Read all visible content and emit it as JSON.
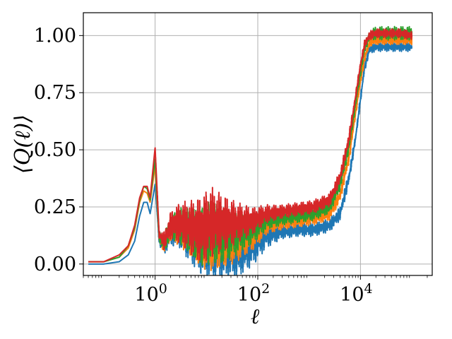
{
  "chart_data": {
    "type": "line",
    "title": "",
    "xlabel": "ℓ",
    "ylabel": "⟨Q(ℓ)⟩",
    "xscale": "log",
    "xlim": [
      0.04,
      250000
    ],
    "ylim": [
      -0.05,
      1.1
    ],
    "grid": true,
    "legend": "none",
    "x_ticks": [
      {
        "value": 1,
        "base": "10",
        "exp": "0"
      },
      {
        "value": 100,
        "base": "10",
        "exp": "2"
      },
      {
        "value": 10000,
        "base": "10",
        "exp": "4"
      }
    ],
    "y_ticks": [
      {
        "value": 0.0,
        "label": "0.00"
      },
      {
        "value": 0.25,
        "label": "0.25"
      },
      {
        "value": 0.5,
        "label": "0.50"
      },
      {
        "value": 0.75,
        "label": "0.75"
      },
      {
        "value": 1.0,
        "label": "1.00"
      }
    ],
    "series": [
      {
        "color": "#1f77b4",
        "x": [
          0.05,
          0.1,
          0.2,
          0.3,
          0.4,
          0.5,
          0.6,
          0.7,
          0.8,
          1.0,
          1.2,
          1.5,
          2,
          3,
          5,
          8,
          12,
          20,
          40,
          80,
          150,
          300,
          600,
          1200,
          2500,
          4000,
          6000,
          8000,
          10000,
          12000,
          15000,
          20000,
          30000,
          60000,
          100000
        ],
        "y": [
          0.0,
          0.0,
          0.01,
          0.04,
          0.1,
          0.21,
          0.27,
          0.27,
          0.22,
          0.35,
          0.1,
          0.08,
          0.13,
          0.14,
          0.1,
          0.07,
          0.06,
          0.05,
          0.04,
          0.08,
          0.13,
          0.14,
          0.15,
          0.15,
          0.17,
          0.22,
          0.38,
          0.55,
          0.72,
          0.86,
          0.94,
          0.95,
          0.95,
          0.95,
          0.95
        ],
        "band": [
          0,
          0,
          0,
          0,
          0,
          0,
          0,
          0,
          0,
          0,
          0.02,
          0.04,
          0.05,
          0.07,
          0.1,
          0.12,
          0.13,
          0.12,
          0.1,
          0.09,
          0.06,
          0.03,
          0.03,
          0.03,
          0.03,
          0.03,
          0.03,
          0.02,
          0.02,
          0.02,
          0.02,
          0.02,
          0.02,
          0.02,
          0.02
        ]
      },
      {
        "color": "#ff7f0e",
        "x": [
          0.05,
          0.1,
          0.2,
          0.3,
          0.4,
          0.5,
          0.6,
          0.7,
          0.8,
          1.0,
          1.2,
          1.5,
          2,
          3,
          5,
          8,
          12,
          20,
          40,
          80,
          150,
          300,
          600,
          1200,
          2500,
          4000,
          6000,
          8000,
          10000,
          12000,
          15000,
          20000,
          30000,
          60000,
          100000
        ],
        "y": [
          0.01,
          0.01,
          0.03,
          0.07,
          0.15,
          0.27,
          0.32,
          0.31,
          0.27,
          0.43,
          0.11,
          0.09,
          0.15,
          0.16,
          0.13,
          0.1,
          0.1,
          0.09,
          0.1,
          0.12,
          0.17,
          0.18,
          0.19,
          0.2,
          0.22,
          0.3,
          0.47,
          0.66,
          0.8,
          0.9,
          0.97,
          0.98,
          0.98,
          0.98,
          0.98
        ],
        "band": [
          0,
          0,
          0,
          0,
          0,
          0,
          0,
          0,
          0,
          0,
          0.02,
          0.04,
          0.05,
          0.08,
          0.1,
          0.12,
          0.13,
          0.11,
          0.09,
          0.06,
          0.04,
          0.03,
          0.03,
          0.03,
          0.03,
          0.03,
          0.03,
          0.02,
          0.02,
          0.02,
          0.02,
          0.02,
          0.02,
          0.02,
          0.02
        ]
      },
      {
        "color": "#2ca02c",
        "x": [
          0.05,
          0.1,
          0.2,
          0.3,
          0.4,
          0.5,
          0.6,
          0.7,
          0.8,
          1.0,
          1.2,
          1.5,
          2,
          3,
          5,
          8,
          12,
          20,
          40,
          80,
          150,
          300,
          600,
          1200,
          2500,
          4000,
          6000,
          8000,
          10000,
          12000,
          15000,
          20000,
          30000,
          60000,
          100000
        ],
        "y": [
          0.01,
          0.01,
          0.03,
          0.08,
          0.16,
          0.28,
          0.34,
          0.33,
          0.28,
          0.46,
          0.12,
          0.09,
          0.16,
          0.17,
          0.14,
          0.12,
          0.14,
          0.12,
          0.13,
          0.15,
          0.19,
          0.2,
          0.21,
          0.22,
          0.25,
          0.35,
          0.52,
          0.7,
          0.84,
          0.94,
          1.0,
          1.01,
          1.01,
          1.01,
          1.01
        ],
        "band": [
          0,
          0,
          0,
          0,
          0,
          0,
          0,
          0,
          0,
          0,
          0.02,
          0.04,
          0.05,
          0.08,
          0.1,
          0.13,
          0.14,
          0.12,
          0.09,
          0.06,
          0.04,
          0.03,
          0.03,
          0.03,
          0.03,
          0.03,
          0.03,
          0.02,
          0.02,
          0.02,
          0.02,
          0.03,
          0.03,
          0.03,
          0.03
        ]
      },
      {
        "color": "#d62728",
        "x": [
          0.05,
          0.1,
          0.2,
          0.3,
          0.4,
          0.5,
          0.6,
          0.7,
          0.8,
          1.0,
          1.2,
          1.5,
          2,
          3,
          5,
          8,
          12,
          20,
          40,
          80,
          150,
          300,
          600,
          1200,
          2500,
          4000,
          6000,
          8000,
          10000,
          12000,
          15000,
          20000,
          30000,
          60000,
          100000
        ],
        "y": [
          0.01,
          0.01,
          0.04,
          0.08,
          0.17,
          0.29,
          0.34,
          0.34,
          0.29,
          0.51,
          0.13,
          0.1,
          0.17,
          0.18,
          0.16,
          0.15,
          0.18,
          0.18,
          0.18,
          0.19,
          0.22,
          0.23,
          0.24,
          0.25,
          0.28,
          0.38,
          0.55,
          0.73,
          0.87,
          0.96,
          1.0,
          1.01,
          1.01,
          1.01,
          1.0
        ],
        "band": [
          0,
          0,
          0,
          0,
          0,
          0,
          0,
          0,
          0,
          0,
          0.02,
          0.04,
          0.06,
          0.09,
          0.12,
          0.15,
          0.16,
          0.13,
          0.09,
          0.06,
          0.04,
          0.03,
          0.03,
          0.03,
          0.03,
          0.03,
          0.03,
          0.02,
          0.02,
          0.02,
          0.02,
          0.02,
          0.02,
          0.02,
          0.02
        ]
      }
    ]
  }
}
